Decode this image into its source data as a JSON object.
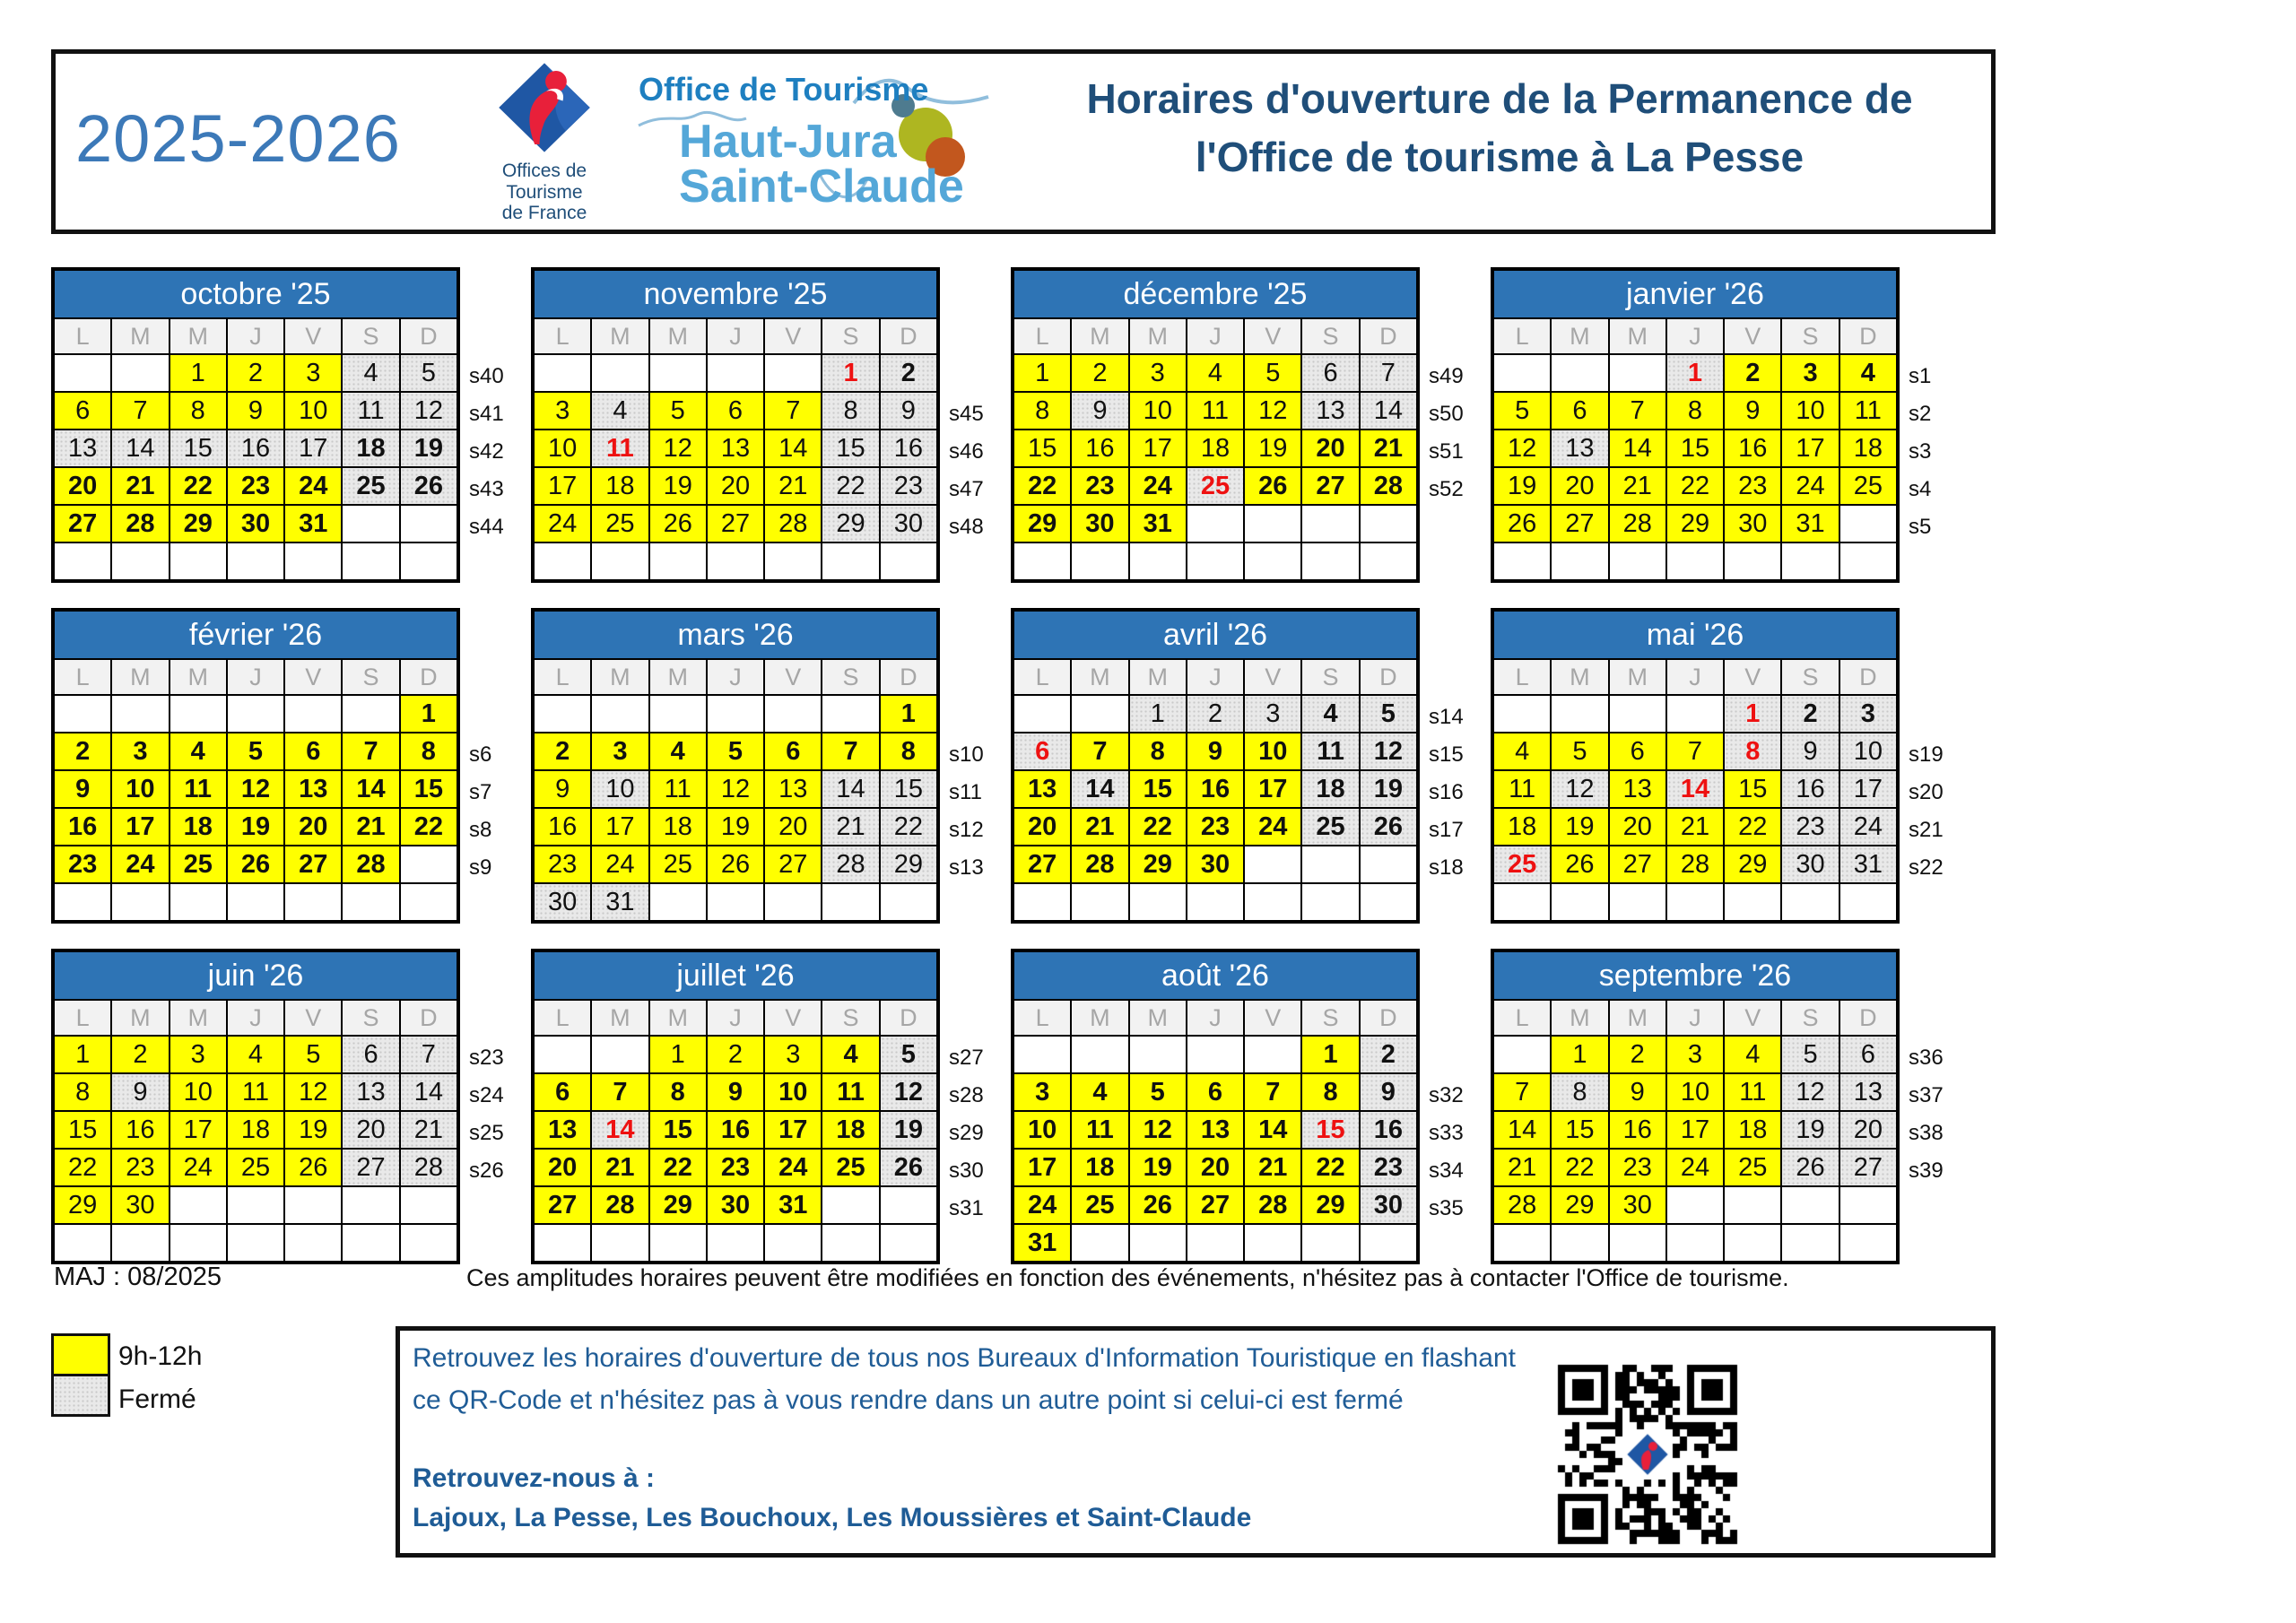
{
  "header": {
    "years": "2025-2026",
    "title_line1": "Horaires d'ouverture de la Permanence de",
    "title_line2": "l'Office de tourisme à La Pesse",
    "logo_otf": {
      "line1": "Offices de",
      "line2": "Tourisme",
      "line3": "de France"
    },
    "logo_hj": {
      "top": "Office de Tourisme",
      "name1": "Haut-Jura",
      "name2": "Saint-Claude"
    }
  },
  "day_headers": [
    "L",
    "M",
    "M",
    "J",
    "V",
    "S",
    "D"
  ],
  "colors": {
    "open": "#FFFF00",
    "closed": "#E9E9E9",
    "header_blue": "#2E74B5",
    "red": "#EE1111",
    "title_blue": "#1F4E79",
    "years_blue": "#3C79B8",
    "text_blue": "#1F5C96"
  },
  "legend": [
    {
      "color": "#FFFF00",
      "label": "9h-12h"
    },
    {
      "color": "#E9E9E9",
      "label": "Fermé"
    }
  ],
  "footer": {
    "maj": "MAJ : 08/2025",
    "note": "Ces amplitudes horaires peuvent être modifiées en fonction des événements, n'hésitez pas à contacter l'Office de tourisme."
  },
  "info_box": {
    "paragraph": "Retrouvez les horaires d'ouverture de tous nos Bureaux d'Information Touristique en flashant ce QR-Code et n'hésitez pas à vous rendre dans un autre point si celui-ci est fermé",
    "heading": "Retrouvez-nous à :",
    "locations": "Lajoux, La Pesse, Les Bouchoux, Les Moussières et Saint-Claude"
  },
  "cell_format": "day|state(o=open,c=closed)|style(n=normal,b=bold,r=red-bold); empty string = blank cell",
  "months": [
    {
      "name": "octobre '25",
      "rows": [
        {
          "week": "s40",
          "cells": [
            "",
            "",
            "1|o|n",
            "2|o|n",
            "3|o|n",
            "4|c|n",
            "5|c|n"
          ]
        },
        {
          "week": "s41",
          "cells": [
            "6|o|n",
            "7|o|n",
            "8|o|n",
            "9|o|n",
            "10|o|n",
            "11|c|n",
            "12|c|n"
          ]
        },
        {
          "week": "s42",
          "cells": [
            "13|c|n",
            "14|c|n",
            "15|c|n",
            "16|c|n",
            "17|c|n",
            "18|c|b",
            "19|c|b"
          ]
        },
        {
          "week": "s43",
          "cells": [
            "20|o|b",
            "21|o|b",
            "22|o|b",
            "23|o|b",
            "24|o|b",
            "25|c|b",
            "26|c|b"
          ]
        },
        {
          "week": "s44",
          "cells": [
            "27|o|b",
            "28|o|b",
            "29|o|b",
            "30|o|b",
            "31|o|b",
            "",
            ""
          ]
        },
        {
          "week": "",
          "cells": [
            "",
            "",
            "",
            "",
            "",
            "",
            ""
          ]
        }
      ]
    },
    {
      "name": "novembre '25",
      "rows": [
        {
          "week": "",
          "cells": [
            "",
            "",
            "",
            "",
            "",
            "1|c|r",
            "2|c|b"
          ]
        },
        {
          "week": "s45",
          "cells": [
            "3|o|n",
            "4|c|n",
            "5|o|n",
            "6|o|n",
            "7|o|n",
            "8|c|n",
            "9|c|n"
          ]
        },
        {
          "week": "s46",
          "cells": [
            "10|o|n",
            "11|c|r",
            "12|o|n",
            "13|o|n",
            "14|o|n",
            "15|c|n",
            "16|c|n"
          ]
        },
        {
          "week": "s47",
          "cells": [
            "17|o|n",
            "18|o|n",
            "19|o|n",
            "20|o|n",
            "21|o|n",
            "22|c|n",
            "23|c|n"
          ]
        },
        {
          "week": "s48",
          "cells": [
            "24|o|n",
            "25|o|n",
            "26|o|n",
            "27|o|n",
            "28|o|n",
            "29|c|n",
            "30|c|n"
          ]
        },
        {
          "week": "",
          "cells": [
            "",
            "",
            "",
            "",
            "",
            "",
            ""
          ]
        }
      ]
    },
    {
      "name": "décembre '25",
      "rows": [
        {
          "week": "s49",
          "cells": [
            "1|o|n",
            "2|o|n",
            "3|o|n",
            "4|o|n",
            "5|o|n",
            "6|c|n",
            "7|c|n"
          ]
        },
        {
          "week": "s50",
          "cells": [
            "8|o|n",
            "9|c|n",
            "10|o|n",
            "11|o|n",
            "12|o|n",
            "13|c|n",
            "14|c|n"
          ]
        },
        {
          "week": "s51",
          "cells": [
            "15|o|n",
            "16|o|n",
            "17|o|n",
            "18|o|n",
            "19|o|n",
            "20|o|b",
            "21|o|b"
          ]
        },
        {
          "week": "s52",
          "cells": [
            "22|o|b",
            "23|o|b",
            "24|o|b",
            "25|c|r",
            "26|o|b",
            "27|o|b",
            "28|o|b"
          ]
        },
        {
          "week": "",
          "cells": [
            "29|o|b",
            "30|o|b",
            "31|o|b",
            "",
            "",
            "",
            ""
          ]
        },
        {
          "week": "",
          "cells": [
            "",
            "",
            "",
            "",
            "",
            "",
            ""
          ]
        }
      ]
    },
    {
      "name": "janvier '26",
      "rows": [
        {
          "week": "s1",
          "cells": [
            "",
            "",
            "",
            "1|c|r",
            "2|o|b",
            "3|o|b",
            "4|o|b"
          ]
        },
        {
          "week": "s2",
          "cells": [
            "5|o|n",
            "6|o|n",
            "7|o|n",
            "8|o|n",
            "9|o|n",
            "10|o|n",
            "11|o|n"
          ]
        },
        {
          "week": "s3",
          "cells": [
            "12|o|n",
            "13|c|n",
            "14|o|n",
            "15|o|n",
            "16|o|n",
            "17|o|n",
            "18|o|n"
          ]
        },
        {
          "week": "s4",
          "cells": [
            "19|o|n",
            "20|o|n",
            "21|o|n",
            "22|o|n",
            "23|o|n",
            "24|o|n",
            "25|o|n"
          ]
        },
        {
          "week": "s5",
          "cells": [
            "26|o|n",
            "27|o|n",
            "28|o|n",
            "29|o|n",
            "30|o|n",
            "31|o|n",
            ""
          ]
        },
        {
          "week": "",
          "cells": [
            "",
            "",
            "",
            "",
            "",
            "",
            ""
          ]
        }
      ]
    },
    {
      "name": "février '26",
      "rows": [
        {
          "week": "",
          "cells": [
            "",
            "",
            "",
            "",
            "",
            "",
            "1|o|b"
          ]
        },
        {
          "week": "s6",
          "cells": [
            "2|o|b",
            "3|o|b",
            "4|o|b",
            "5|o|b",
            "6|o|b",
            "7|o|b",
            "8|o|b"
          ]
        },
        {
          "week": "s7",
          "cells": [
            "9|o|b",
            "10|o|b",
            "11|o|b",
            "12|o|b",
            "13|o|b",
            "14|o|b",
            "15|o|b"
          ]
        },
        {
          "week": "s8",
          "cells": [
            "16|o|b",
            "17|o|b",
            "18|o|b",
            "19|o|b",
            "20|o|b",
            "21|o|b",
            "22|o|b"
          ]
        },
        {
          "week": "s9",
          "cells": [
            "23|o|b",
            "24|o|b",
            "25|o|b",
            "26|o|b",
            "27|o|b",
            "28|o|b",
            ""
          ]
        },
        {
          "week": "",
          "cells": [
            "",
            "",
            "",
            "",
            "",
            "",
            ""
          ]
        }
      ]
    },
    {
      "name": "mars '26",
      "rows": [
        {
          "week": "",
          "cells": [
            "",
            "",
            "",
            "",
            "",
            "",
            "1|o|b"
          ]
        },
        {
          "week": "s10",
          "cells": [
            "2|o|b",
            "3|o|b",
            "4|o|b",
            "5|o|b",
            "6|o|b",
            "7|o|b",
            "8|o|b"
          ]
        },
        {
          "week": "s11",
          "cells": [
            "9|o|n",
            "10|c|n",
            "11|o|n",
            "12|o|n",
            "13|o|n",
            "14|c|n",
            "15|c|n"
          ]
        },
        {
          "week": "s12",
          "cells": [
            "16|o|n",
            "17|o|n",
            "18|o|n",
            "19|o|n",
            "20|o|n",
            "21|c|n",
            "22|c|n"
          ]
        },
        {
          "week": "s13",
          "cells": [
            "23|o|n",
            "24|o|n",
            "25|o|n",
            "26|o|n",
            "27|o|n",
            "28|c|n",
            "29|c|n"
          ]
        },
        {
          "week": "",
          "cells": [
            "30|c|n",
            "31|c|n",
            "",
            "",
            "",
            "",
            ""
          ]
        }
      ]
    },
    {
      "name": "avril '26",
      "rows": [
        {
          "week": "s14",
          "cells": [
            "",
            "",
            "1|c|n",
            "2|c|n",
            "3|c|n",
            "4|c|b",
            "5|c|b"
          ]
        },
        {
          "week": "s15",
          "cells": [
            "6|c|r",
            "7|o|b",
            "8|o|b",
            "9|o|b",
            "10|o|b",
            "11|c|b",
            "12|c|b"
          ]
        },
        {
          "week": "s16",
          "cells": [
            "13|o|b",
            "14|c|b",
            "15|o|b",
            "16|o|b",
            "17|o|b",
            "18|c|b",
            "19|c|b"
          ]
        },
        {
          "week": "s17",
          "cells": [
            "20|o|b",
            "21|o|b",
            "22|o|b",
            "23|o|b",
            "24|o|b",
            "25|c|b",
            "26|c|b"
          ]
        },
        {
          "week": "s18",
          "cells": [
            "27|o|b",
            "28|o|b",
            "29|o|b",
            "30|o|b",
            "",
            "",
            ""
          ]
        },
        {
          "week": "",
          "cells": [
            "",
            "",
            "",
            "",
            "",
            "",
            ""
          ]
        }
      ]
    },
    {
      "name": "mai '26",
      "rows": [
        {
          "week": "",
          "cells": [
            "",
            "",
            "",
            "",
            "1|c|r",
            "2|c|b",
            "3|c|b"
          ]
        },
        {
          "week": "s19",
          "cells": [
            "4|o|n",
            "5|o|n",
            "6|o|n",
            "7|o|n",
            "8|c|r",
            "9|c|n",
            "10|c|n"
          ]
        },
        {
          "week": "s20",
          "cells": [
            "11|o|n",
            "12|c|n",
            "13|o|n",
            "14|c|r",
            "15|o|n",
            "16|c|n",
            "17|c|n"
          ]
        },
        {
          "week": "s21",
          "cells": [
            "18|o|n",
            "19|o|n",
            "20|o|n",
            "21|o|n",
            "22|o|n",
            "23|c|n",
            "24|c|n"
          ]
        },
        {
          "week": "s22",
          "cells": [
            "25|c|r",
            "26|o|n",
            "27|o|n",
            "28|o|n",
            "29|o|n",
            "30|c|n",
            "31|c|n"
          ]
        },
        {
          "week": "",
          "cells": [
            "",
            "",
            "",
            "",
            "",
            "",
            ""
          ]
        }
      ]
    },
    {
      "name": "juin '26",
      "rows": [
        {
          "week": "s23",
          "cells": [
            "1|o|n",
            "2|o|n",
            "3|o|n",
            "4|o|n",
            "5|o|n",
            "6|c|n",
            "7|c|n"
          ]
        },
        {
          "week": "s24",
          "cells": [
            "8|o|n",
            "9|c|n",
            "10|o|n",
            "11|o|n",
            "12|o|n",
            "13|c|n",
            "14|c|n"
          ]
        },
        {
          "week": "s25",
          "cells": [
            "15|o|n",
            "16|o|n",
            "17|o|n",
            "18|o|n",
            "19|o|n",
            "20|c|n",
            "21|c|n"
          ]
        },
        {
          "week": "s26",
          "cells": [
            "22|o|n",
            "23|o|n",
            "24|o|n",
            "25|o|n",
            "26|o|n",
            "27|c|n",
            "28|c|n"
          ]
        },
        {
          "week": "",
          "cells": [
            "29|o|n",
            "30|o|n",
            "",
            "",
            "",
            "",
            ""
          ]
        },
        {
          "week": "",
          "cells": [
            "",
            "",
            "",
            "",
            "",
            "",
            ""
          ]
        }
      ]
    },
    {
      "name": "juillet '26",
      "rows": [
        {
          "week": "s27",
          "cells": [
            "",
            "",
            "1|o|n",
            "2|o|n",
            "3|o|n",
            "4|o|b",
            "5|c|b"
          ]
        },
        {
          "week": "s28",
          "cells": [
            "6|o|b",
            "7|o|b",
            "8|o|b",
            "9|o|b",
            "10|o|b",
            "11|o|b",
            "12|c|b"
          ]
        },
        {
          "week": "s29",
          "cells": [
            "13|o|b",
            "14|c|r",
            "15|o|b",
            "16|o|b",
            "17|o|b",
            "18|o|b",
            "19|c|b"
          ]
        },
        {
          "week": "s30",
          "cells": [
            "20|o|b",
            "21|o|b",
            "22|o|b",
            "23|o|b",
            "24|o|b",
            "25|o|b",
            "26|c|b"
          ]
        },
        {
          "week": "s31",
          "cells": [
            "27|o|b",
            "28|o|b",
            "29|o|b",
            "30|o|b",
            "31|o|b",
            "",
            ""
          ]
        },
        {
          "week": "",
          "cells": [
            "",
            "",
            "",
            "",
            "",
            "",
            ""
          ]
        }
      ]
    },
    {
      "name": "août '26",
      "rows": [
        {
          "week": "",
          "cells": [
            "",
            "",
            "",
            "",
            "",
            "1|o|b",
            "2|c|b"
          ]
        },
        {
          "week": "s32",
          "cells": [
            "3|o|b",
            "4|o|b",
            "5|o|b",
            "6|o|b",
            "7|o|b",
            "8|o|b",
            "9|c|b"
          ]
        },
        {
          "week": "s33",
          "cells": [
            "10|o|b",
            "11|o|b",
            "12|o|b",
            "13|o|b",
            "14|o|b",
            "15|c|r",
            "16|c|b"
          ]
        },
        {
          "week": "s34",
          "cells": [
            "17|o|b",
            "18|o|b",
            "19|o|b",
            "20|o|b",
            "21|o|b",
            "22|o|b",
            "23|c|b"
          ]
        },
        {
          "week": "s35",
          "cells": [
            "24|o|b",
            "25|o|b",
            "26|o|b",
            "27|o|b",
            "28|o|b",
            "29|o|b",
            "30|c|b"
          ]
        },
        {
          "week": "",
          "cells": [
            "31|o|b",
            "",
            "",
            "",
            "",
            "",
            ""
          ]
        }
      ]
    },
    {
      "name": "septembre '26",
      "rows": [
        {
          "week": "s36",
          "cells": [
            "",
            "1|o|n",
            "2|o|n",
            "3|o|n",
            "4|o|n",
            "5|c|n",
            "6|c|n"
          ]
        },
        {
          "week": "s37",
          "cells": [
            "7|o|n",
            "8|c|n",
            "9|o|n",
            "10|o|n",
            "11|o|n",
            "12|c|n",
            "13|c|n"
          ]
        },
        {
          "week": "s38",
          "cells": [
            "14|o|n",
            "15|o|n",
            "16|o|n",
            "17|o|n",
            "18|o|n",
            "19|c|n",
            "20|c|n"
          ]
        },
        {
          "week": "s39",
          "cells": [
            "21|o|n",
            "22|o|n",
            "23|o|n",
            "24|o|n",
            "25|o|n",
            "26|c|n",
            "27|c|n"
          ]
        },
        {
          "week": "",
          "cells": [
            "28|o|n",
            "29|o|n",
            "30|o|n",
            "",
            "",
            "",
            ""
          ]
        },
        {
          "week": "",
          "cells": [
            "",
            "",
            "",
            "",
            "",
            "",
            ""
          ]
        }
      ]
    }
  ]
}
